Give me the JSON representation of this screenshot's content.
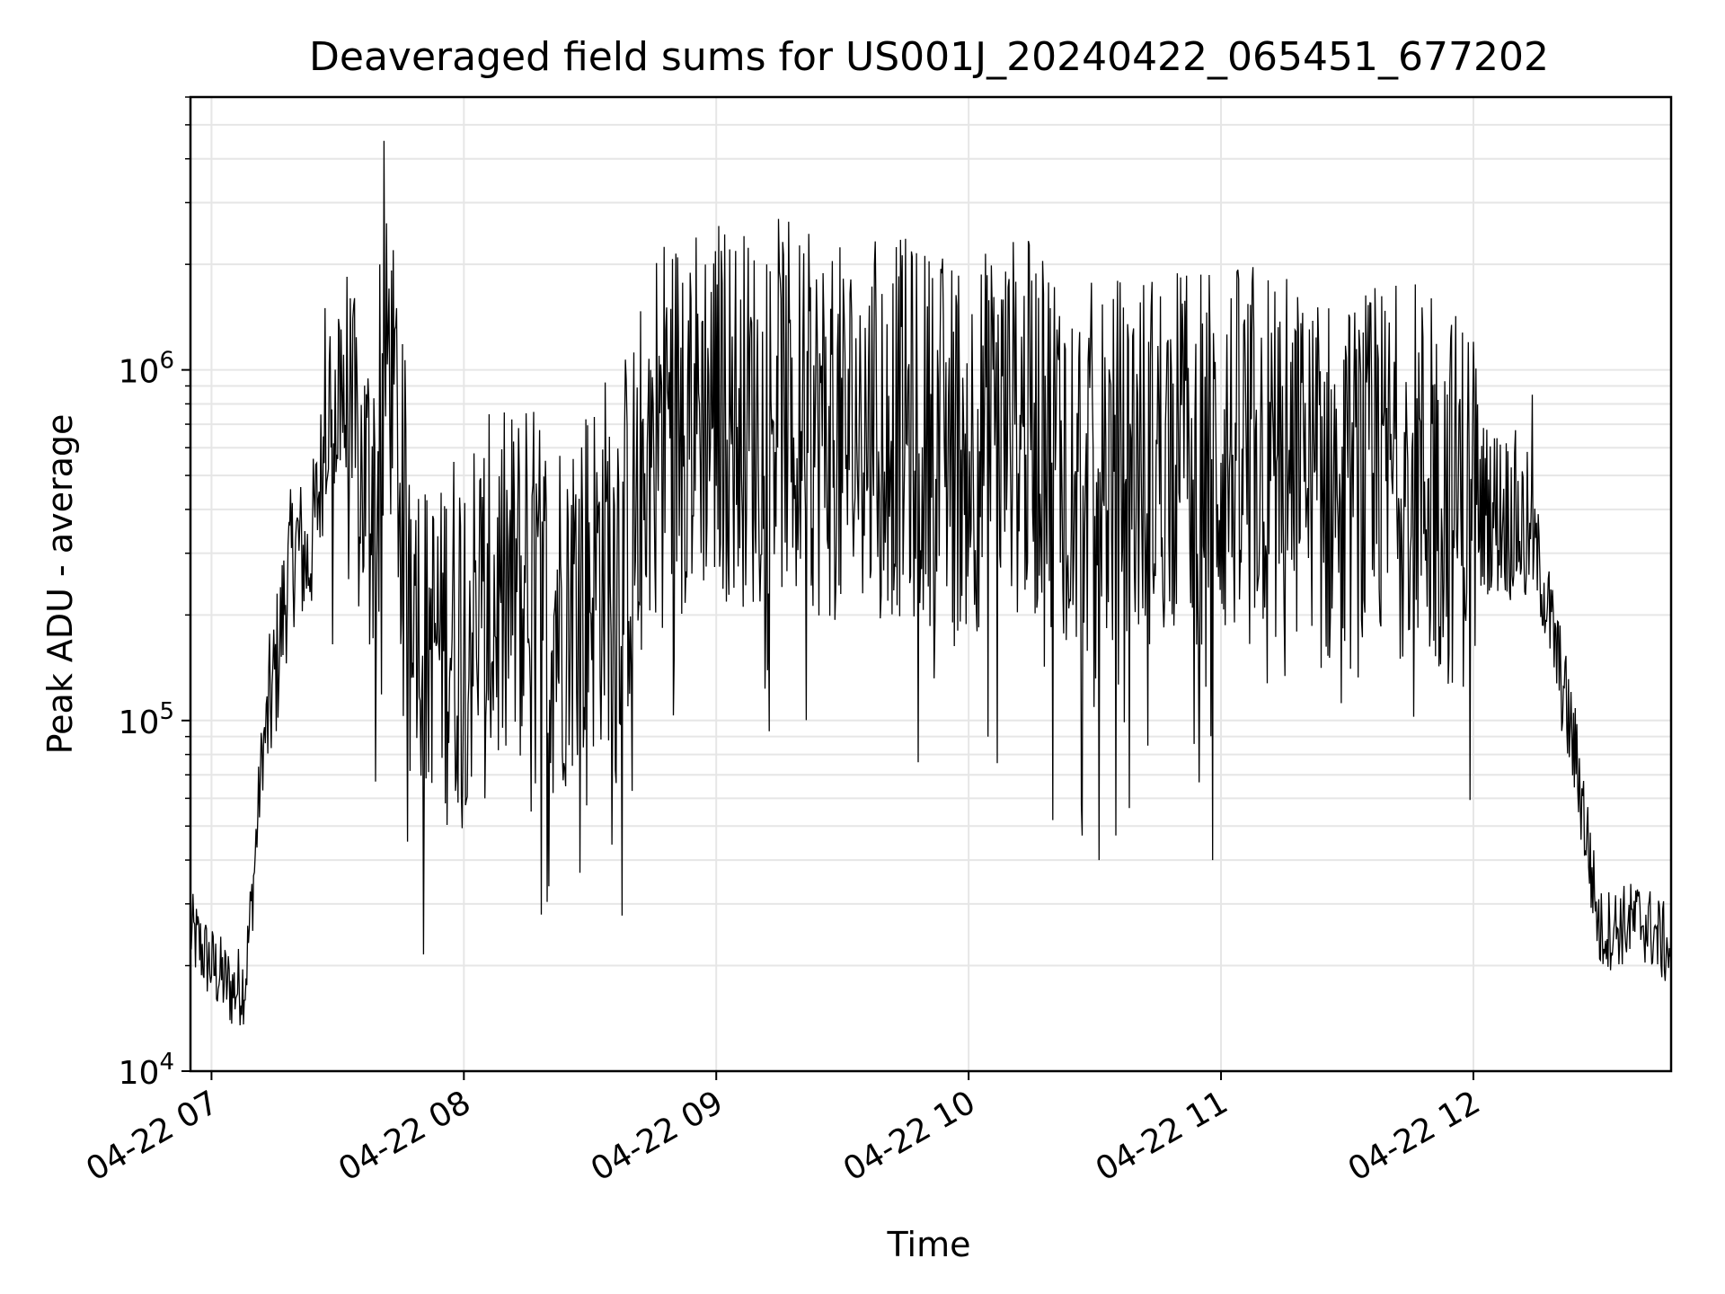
{
  "chart_data": {
    "type": "line",
    "title": "Deaveraged field sums for US001J_20240422_065451_677202",
    "xlabel": "Time",
    "ylabel": "Peak ADU - average",
    "yscale": "log",
    "ylim": [
      10000,
      6000000
    ],
    "xlim": [
      "2024-04-22 06:55",
      "2024-04-22 12:47"
    ],
    "x_ticks": [
      "2024-04-22 07:00",
      "2024-04-22 08:00",
      "2024-04-22 09:00",
      "2024-04-22 10:00",
      "2024-04-22 11:00",
      "2024-04-22 12:00"
    ],
    "x_tick_labels": [
      "04-22 07",
      "04-22 08",
      "04-22 09",
      "04-22 10",
      "04-22 11",
      "04-22 12"
    ],
    "y_major_ticks": [
      10000,
      100000,
      1000000
    ],
    "y_tick_labels": [
      {
        "base": "10",
        "exp": "4"
      },
      {
        "base": "10",
        "exp": "5"
      },
      {
        "base": "10",
        "exp": "6"
      }
    ],
    "grid": true,
    "line_color": "#000000",
    "series": [
      {
        "x": [
          "2024-04-22 06:55",
          "2024-04-22 07:00",
          "2024-04-22 07:05",
          "2024-04-22 07:08",
          "2024-04-22 07:10",
          "2024-04-22 07:12",
          "2024-04-22 07:15",
          "2024-04-22 07:18",
          "2024-04-22 07:20",
          "2024-04-22 07:23",
          "2024-04-22 07:25",
          "2024-04-22 07:28",
          "2024-04-22 07:31",
          "2024-04-22 07:35",
          "2024-04-22 07:40",
          "2024-04-22 07:42",
          "2024-04-22 07:45",
          "2024-04-22 07:48",
          "2024-04-22 07:50",
          "2024-04-22 07:55",
          "2024-04-22 08:00",
          "2024-04-22 08:10",
          "2024-04-22 08:15",
          "2024-04-22 08:20",
          "2024-04-22 08:30",
          "2024-04-22 08:40",
          "2024-04-22 08:45",
          "2024-04-22 08:50",
          "2024-04-22 09:00",
          "2024-04-22 09:10",
          "2024-04-22 09:15",
          "2024-04-22 09:20",
          "2024-04-22 09:30",
          "2024-04-22 09:40",
          "2024-04-22 09:50",
          "2024-04-22 10:00",
          "2024-04-22 10:10",
          "2024-04-22 10:20",
          "2024-04-22 10:30",
          "2024-04-22 10:40",
          "2024-04-22 10:50",
          "2024-04-22 11:00",
          "2024-04-22 11:10",
          "2024-04-22 11:20",
          "2024-04-22 11:30",
          "2024-04-22 11:40",
          "2024-04-22 11:45",
          "2024-04-22 11:50",
          "2024-04-22 12:00",
          "2024-04-22 12:05",
          "2024-04-22 12:10",
          "2024-04-22 12:15",
          "2024-04-22 12:18",
          "2024-04-22 12:20",
          "2024-04-22 12:25",
          "2024-04-22 12:30",
          "2024-04-22 12:40",
          "2024-04-22 12:47"
        ],
        "y": [
          25000,
          20000,
          17000,
          18000,
          35000,
          80000,
          130000,
          250000,
          320000,
          280000,
          400000,
          800000,
          900000,
          500000,
          450000,
          1200000,
          450000,
          300000,
          180000,
          170000,
          200000,
          220000,
          250000,
          200000,
          260000,
          350000,
          700000,
          750000,
          800000,
          700000,
          800000,
          700000,
          650000,
          700000,
          650000,
          600000,
          700000,
          650000,
          500000,
          550000,
          600000,
          550000,
          600000,
          500000,
          450000,
          500000,
          550000,
          450000,
          420000,
          400000,
          380000,
          300000,
          200000,
          150000,
          70000,
          25000,
          27000,
          22000
        ],
        "spikes_high": [
          {
            "x": "2024-04-22 07:27",
            "y": 1500000
          },
          {
            "x": "2024-04-22 07:33",
            "y": 1600000
          },
          {
            "x": "2024-04-22 07:41",
            "y": 4500000
          },
          {
            "x": "2024-04-22 07:40",
            "y": 2000000
          },
          {
            "x": "2024-04-22 07:44",
            "y": 1500000
          },
          {
            "x": "2024-04-22 09:12",
            "y": 2000000
          },
          {
            "x": "2024-04-22 09:15",
            "y": 1900000
          },
          {
            "x": "2024-04-22 08:48",
            "y": 1300000
          },
          {
            "x": "2024-04-22 09:38",
            "y": 1400000
          },
          {
            "x": "2024-04-22 11:50",
            "y": 1600000
          },
          {
            "x": "2024-04-22 12:14",
            "y": 850000
          }
        ],
        "spikes_low": [
          {
            "x": "2024-04-22 07:39",
            "y": 67000
          },
          {
            "x": "2024-04-22 07:58",
            "y": 63000
          },
          {
            "x": "2024-04-22 08:05",
            "y": 60000
          },
          {
            "x": "2024-04-22 08:16",
            "y": 55000
          },
          {
            "x": "2024-04-22 08:40",
            "y": 63000
          },
          {
            "x": "2024-04-22 09:48",
            "y": 76000
          },
          {
            "x": "2024-04-22 10:20",
            "y": 52000
          },
          {
            "x": "2024-04-22 10:27",
            "y": 47000
          },
          {
            "x": "2024-04-22 10:31",
            "y": 40000
          },
          {
            "x": "2024-04-22 10:35",
            "y": 47000
          },
          {
            "x": "2024-04-22 10:58",
            "y": 40000
          }
        ]
      }
    ]
  }
}
